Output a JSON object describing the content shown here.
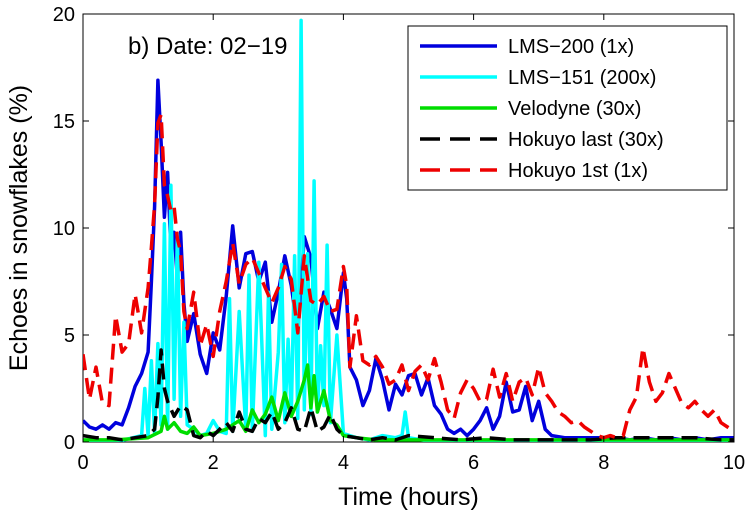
{
  "chart_data": {
    "type": "line",
    "annotation": "b) Date: 02−19",
    "xlabel": "Time (hours)",
    "ylabel": "Echoes in snowflakes (%)",
    "xlim": [
      0,
      10
    ],
    "ylim": [
      0,
      20
    ],
    "x_ticks": [
      0,
      2,
      4,
      6,
      8,
      10
    ],
    "x_tick_labels": [
      "0",
      "2",
      "4",
      "6",
      "8",
      "10"
    ],
    "y_ticks": [
      0,
      5,
      10,
      15,
      20
    ],
    "y_tick_labels": [
      "0",
      "5",
      "10",
      "15",
      "20"
    ],
    "grid": false,
    "legend_position": "top-right",
    "series": [
      {
        "name": "LMS−200 (1x)",
        "color": "#0000dd",
        "dash": "solid",
        "x": [
          0,
          0.1,
          0.2,
          0.3,
          0.4,
          0.5,
          0.6,
          0.7,
          0.8,
          0.9,
          1.0,
          1.05,
          1.1,
          1.15,
          1.2,
          1.25,
          1.3,
          1.35,
          1.4,
          1.45,
          1.5,
          1.55,
          1.6,
          1.7,
          1.8,
          1.9,
          2.0,
          2.1,
          2.2,
          2.3,
          2.4,
          2.5,
          2.6,
          2.7,
          2.8,
          2.9,
          3.0,
          3.1,
          3.2,
          3.3,
          3.4,
          3.5,
          3.6,
          3.7,
          3.8,
          3.9,
          4.0,
          4.05,
          4.1,
          4.2,
          4.3,
          4.4,
          4.5,
          4.6,
          4.7,
          4.8,
          4.9,
          5.0,
          5.1,
          5.2,
          5.3,
          5.4,
          5.5,
          5.6,
          5.7,
          5.8,
          5.9,
          6.0,
          6.1,
          6.2,
          6.3,
          6.4,
          6.5,
          6.6,
          6.7,
          6.8,
          6.9,
          7.0,
          7.1,
          7.2,
          7.4,
          7.6,
          7.8,
          8.0,
          8.2,
          8.4,
          8.6,
          8.8,
          9.0,
          9.2,
          9.4,
          9.6,
          9.8,
          10.0
        ],
        "y": [
          1.0,
          0.7,
          0.6,
          0.8,
          0.6,
          0.9,
          0.8,
          1.6,
          2.6,
          3.2,
          4.2,
          7.5,
          11.0,
          16.9,
          14.0,
          10.5,
          12.6,
          9.0,
          9.8,
          7.6,
          9.8,
          6.5,
          4.7,
          6.0,
          4.1,
          3.2,
          5.1,
          4.3,
          6.8,
          10.1,
          7.2,
          8.8,
          8.9,
          7.5,
          8.4,
          5.6,
          7.0,
          8.7,
          7.3,
          5.1,
          9.6,
          8.6,
          5.3,
          7.0,
          6.2,
          5.3,
          7.9,
          6.7,
          3.5,
          2.9,
          1.7,
          2.4,
          3.9,
          2.9,
          1.5,
          2.7,
          2.2,
          3.1,
          3.2,
          2.2,
          3.0,
          1.7,
          1.3,
          0.6,
          0.4,
          0.6,
          0.3,
          0.6,
          1.0,
          1.6,
          0.6,
          1.2,
          2.8,
          1.4,
          1.5,
          2.6,
          1.0,
          1.9,
          0.6,
          0.3,
          0.2,
          0.2,
          0.2,
          0.2,
          0.2,
          0.1,
          0.2,
          0.1,
          0.2,
          0.1,
          0.2,
          0.1,
          0.2,
          0.2
        ]
      },
      {
        "name": "LMS−151 (200x)",
        "color": "#00ffff",
        "dash": "solid",
        "x": [
          0,
          0.5,
          0.9,
          0.95,
          1.0,
          1.05,
          1.1,
          1.15,
          1.2,
          1.25,
          1.3,
          1.35,
          1.4,
          1.45,
          1.5,
          1.55,
          1.6,
          1.7,
          1.8,
          1.9,
          2.0,
          2.1,
          2.2,
          2.25,
          2.3,
          2.4,
          2.5,
          2.55,
          2.6,
          2.7,
          2.8,
          2.85,
          2.9,
          3.0,
          3.05,
          3.1,
          3.15,
          3.2,
          3.25,
          3.3,
          3.35,
          3.4,
          3.45,
          3.5,
          3.55,
          3.6,
          3.65,
          3.7,
          3.75,
          3.8,
          3.9,
          4.0,
          4.1,
          4.2,
          4.4,
          4.6,
          4.8,
          4.9,
          4.95,
          5.0,
          5.2,
          5.4,
          6.0,
          7.0,
          8.0,
          9.0,
          10.0
        ],
        "y": [
          0,
          0,
          0.3,
          2.5,
          0.3,
          3.8,
          0.4,
          4.6,
          0.8,
          10.2,
          0.6,
          12.0,
          2.0,
          9.7,
          1.2,
          5.6,
          0.8,
          0.6,
          0.3,
          0.4,
          1.0,
          0.5,
          0.4,
          6.7,
          0.5,
          6.1,
          0.6,
          7.8,
          0.5,
          8.4,
          0.3,
          7.0,
          0.6,
          4.2,
          8.3,
          0.9,
          4.8,
          1.3,
          8.7,
          1.1,
          19.7,
          1.5,
          8.8,
          1.3,
          12.2,
          1.4,
          4.5,
          1.7,
          9.2,
          0.9,
          5.0,
          0.4,
          0.3,
          0.2,
          0.1,
          0.3,
          0.2,
          0.3,
          1.4,
          0.2,
          0.1,
          0,
          0,
          0,
          0,
          0,
          0
        ]
      },
      {
        "name": "Velodyne (30x)",
        "color": "#00dd00",
        "dash": "solid",
        "x": [
          0,
          0.5,
          1.0,
          1.2,
          1.25,
          1.3,
          1.4,
          1.5,
          1.6,
          1.7,
          1.8,
          2.0,
          2.2,
          2.4,
          2.5,
          2.6,
          2.7,
          2.8,
          2.9,
          3.0,
          3.1,
          3.2,
          3.3,
          3.4,
          3.45,
          3.5,
          3.55,
          3.6,
          3.7,
          3.8,
          3.9,
          4.0,
          4.2,
          4.5,
          5.0,
          6.0,
          7.0,
          8.0,
          9.0,
          10.0
        ],
        "y": [
          0.1,
          0.1,
          0.2,
          0.5,
          1.2,
          0.6,
          0.9,
          0.5,
          0.4,
          0.7,
          0.3,
          0.4,
          0.6,
          1.0,
          0.5,
          1.5,
          0.9,
          1.3,
          2.1,
          1.0,
          2.3,
          1.2,
          1.9,
          2.9,
          3.6,
          1.6,
          3.1,
          1.4,
          2.4,
          1.0,
          0.8,
          0.3,
          0.2,
          0.1,
          0.1,
          0.1,
          0.1,
          0.1,
          0.1,
          0.1
        ]
      },
      {
        "name": "Hokuyo last (30x)",
        "color": "#000000",
        "dash": "dashed",
        "x": [
          0,
          0.2,
          0.4,
          0.6,
          0.8,
          1.0,
          1.1,
          1.15,
          1.2,
          1.25,
          1.3,
          1.4,
          1.5,
          1.6,
          1.7,
          1.8,
          1.9,
          2.0,
          2.1,
          2.2,
          2.3,
          2.4,
          2.5,
          2.6,
          2.7,
          2.8,
          2.9,
          3.0,
          3.1,
          3.2,
          3.3,
          3.4,
          3.5,
          3.6,
          3.7,
          3.8,
          3.9,
          4.0,
          4.2,
          4.4,
          4.6,
          4.8,
          5.0,
          5.4,
          5.8,
          6.2,
          6.6,
          7.0,
          7.4,
          7.8,
          8.2,
          8.6,
          9.0,
          9.4,
          9.8,
          10.0
        ],
        "y": [
          0.3,
          0.2,
          0.2,
          0.1,
          0.2,
          0.3,
          0.6,
          2.1,
          4.3,
          2.5,
          1.9,
          1.2,
          1.7,
          1.5,
          0.3,
          0.2,
          0.5,
          0.3,
          0.6,
          0.9,
          0.5,
          1.4,
          0.6,
          0.5,
          1.1,
          0.9,
          1.4,
          0.6,
          0.9,
          1.6,
          0.6,
          0.5,
          1.6,
          0.5,
          0.7,
          1.3,
          0.6,
          0.3,
          0.2,
          0.1,
          0.2,
          0.1,
          0.3,
          0.2,
          0.1,
          0.2,
          0.1,
          0.1,
          0.1,
          0.1,
          0.2,
          0.2,
          0.2,
          0.2,
          0.1,
          0.1
        ]
      },
      {
        "name": "Hokuyo 1st (1x)",
        "color": "#ee0000",
        "dash": "dashed",
        "x": [
          0,
          0.1,
          0.2,
          0.3,
          0.4,
          0.5,
          0.6,
          0.7,
          0.8,
          0.9,
          1.0,
          1.05,
          1.1,
          1.15,
          1.2,
          1.25,
          1.3,
          1.35,
          1.4,
          1.45,
          1.5,
          1.55,
          1.6,
          1.7,
          1.8,
          1.9,
          2.0,
          2.1,
          2.2,
          2.3,
          2.4,
          2.5,
          2.6,
          2.7,
          2.8,
          2.9,
          3.0,
          3.1,
          3.2,
          3.3,
          3.4,
          3.5,
          3.6,
          3.7,
          3.8,
          3.9,
          4.0,
          4.05,
          4.1,
          4.2,
          4.3,
          4.4,
          4.5,
          4.6,
          4.7,
          4.8,
          4.9,
          5.0,
          5.1,
          5.2,
          5.3,
          5.4,
          5.5,
          5.6,
          5.7,
          5.8,
          5.9,
          6.0,
          6.1,
          6.2,
          6.3,
          6.4,
          6.5,
          6.6,
          6.7,
          6.8,
          6.9,
          7.0,
          7.1,
          7.2,
          7.3,
          7.4,
          7.5,
          7.6,
          7.7,
          7.8,
          7.9,
          8.0,
          8.1,
          8.2,
          8.3,
          8.4,
          8.5,
          8.6,
          8.7,
          8.8,
          8.9,
          9.0,
          9.1,
          9.2,
          9.3,
          9.4,
          9.5,
          9.6,
          9.7,
          9.8,
          9.9,
          10.0
        ],
        "y": [
          4.1,
          2.0,
          3.5,
          1.8,
          1.7,
          5.9,
          4.2,
          4.6,
          6.9,
          5.1,
          7.2,
          9.1,
          11.1,
          14.9,
          15.3,
          12.0,
          11.5,
          10.8,
          11.0,
          9.5,
          8.9,
          6.1,
          5.3,
          7.0,
          4.5,
          5.5,
          4.0,
          6.1,
          7.5,
          9.3,
          7.4,
          8.3,
          8.6,
          7.9,
          7.2,
          6.5,
          7.2,
          8.2,
          7.6,
          5.1,
          8.7,
          6.6,
          6.4,
          6.8,
          6.1,
          6.2,
          8.2,
          7.3,
          3.5,
          5.9,
          3.8,
          3.6,
          4.0,
          3.5,
          2.7,
          2.9,
          3.6,
          2.4,
          3.3,
          3.6,
          2.9,
          3.9,
          2.8,
          1.5,
          1.1,
          2.3,
          2.9,
          2.5,
          1.9,
          2.0,
          3.4,
          2.1,
          3.2,
          1.9,
          2.8,
          3.0,
          2.2,
          3.5,
          2.3,
          1.9,
          1.4,
          1.2,
          0.9,
          1.0,
          0.7,
          0.5,
          0.3,
          0.2,
          0.3,
          0.2,
          0.3,
          1.5,
          2.1,
          4.4,
          2.8,
          1.9,
          2.3,
          3.2,
          2.5,
          1.8,
          1.6,
          1.9,
          1.5,
          1.2,
          1.5,
          0.9,
          0.7,
          0.5
        ]
      }
    ]
  }
}
